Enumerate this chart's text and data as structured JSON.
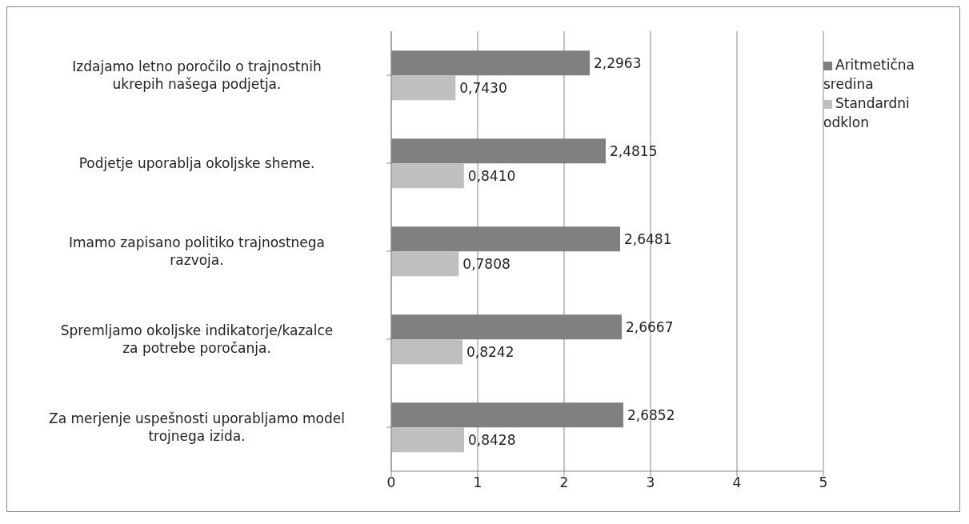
{
  "chart_data": {
    "type": "bar",
    "orientation": "horizontal",
    "categories": [
      "Izdajamo letno poročilo o trajnostnih ukrepih našega podjetja.",
      "Podjetje uporablja okoljske sheme.",
      "Imamo zapisano politiko trajnostnega razvoja.",
      "Spremljamo okoljske indikatorje/kazalce za potrebe poročanja.",
      "Za merjenje uspešnosti uporabljamo model trojnega izida."
    ],
    "series": [
      {
        "name": "Aritmetična sredina",
        "color": "#808080",
        "values": [
          2.2963,
          2.4815,
          2.6481,
          2.6667,
          2.6852
        ],
        "value_labels": [
          "2,2963",
          "2,4815",
          "2,6481",
          "2,6667",
          "2,6852"
        ]
      },
      {
        "name": "Standardni odklon",
        "color": "#bfbfbf",
        "values": [
          0.743,
          0.841,
          0.7808,
          0.8242,
          0.8428
        ],
        "value_labels": [
          "0,7430",
          "0,8410",
          "0,7808",
          "0,8242",
          "0,8428"
        ]
      }
    ],
    "xlim": [
      0,
      5
    ],
    "xticks": [
      0,
      1,
      2,
      3,
      4,
      5
    ],
    "grid": "x",
    "legend": "right"
  }
}
